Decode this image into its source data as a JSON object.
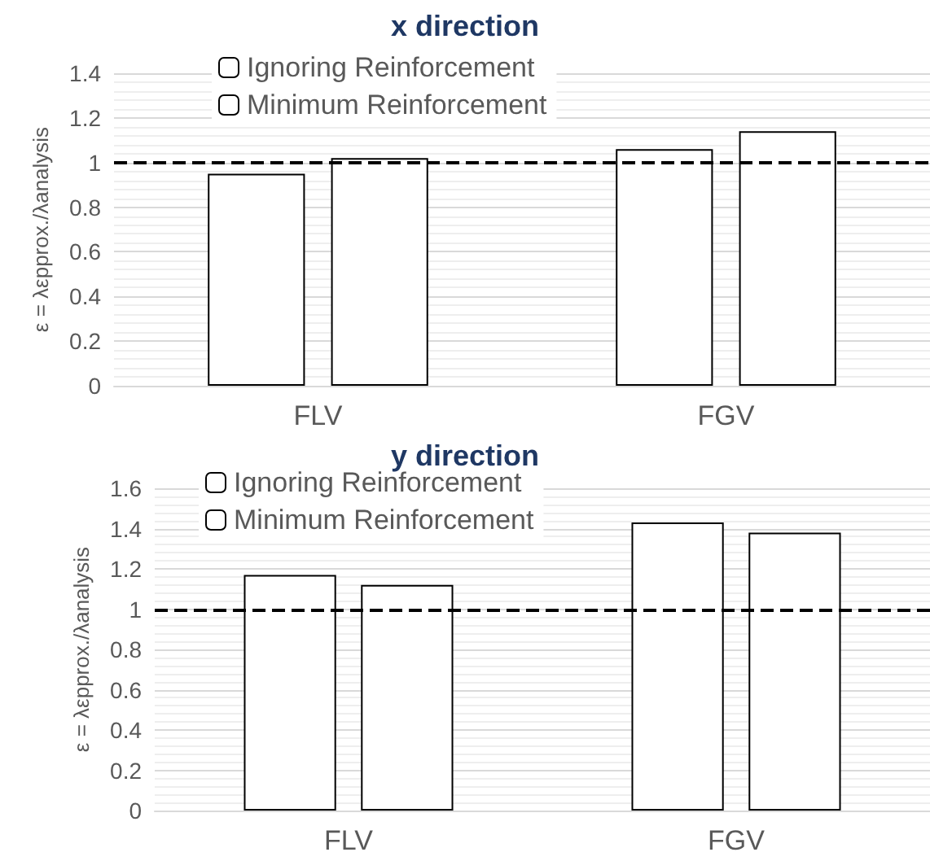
{
  "chart_data": [
    {
      "type": "bar",
      "title": "x direction",
      "ylabel": "ε = λεpprox./λanalysis",
      "categories": [
        "FLV",
        "FGV"
      ],
      "series": [
        {
          "name": "Ignoring Reinforcement",
          "color": "#ffffff",
          "values": [
            0.95,
            1.06
          ]
        },
        {
          "name": "Minimum Reinforcement",
          "color": "#ffffff",
          "values": [
            1.02,
            1.14
          ]
        }
      ],
      "ylim": [
        0,
        1.4
      ],
      "yticks": [
        0,
        0.2,
        0.4,
        0.6,
        0.8,
        1,
        1.2,
        1.4
      ],
      "grid": "y",
      "legend": "top left",
      "ref_lines": [
        {
          "axis": "y",
          "value": 1,
          "color": "#000000",
          "line_style": "dashed"
        }
      ]
    },
    {
      "type": "bar",
      "title": "y direction",
      "ylabel": "ε = λεpprox./λanalysis",
      "categories": [
        "FLV",
        "FGV"
      ],
      "series": [
        {
          "name": "Ignoring Reinforcement",
          "color": "#ffffff",
          "values": [
            1.17,
            1.43
          ]
        },
        {
          "name": "Minimum Reinforcement",
          "color": "#ffffff",
          "values": [
            1.12,
            1.38
          ]
        }
      ],
      "ylim": [
        0,
        1.6
      ],
      "yticks": [
        0,
        0.2,
        0.4,
        0.6,
        0.8,
        1,
        1.2,
        1.4,
        1.6
      ],
      "grid": "y",
      "legend": "top left",
      "ref_lines": [
        {
          "axis": "y",
          "value": 1,
          "color": "#000000",
          "line_style": "dashed"
        }
      ]
    }
  ]
}
